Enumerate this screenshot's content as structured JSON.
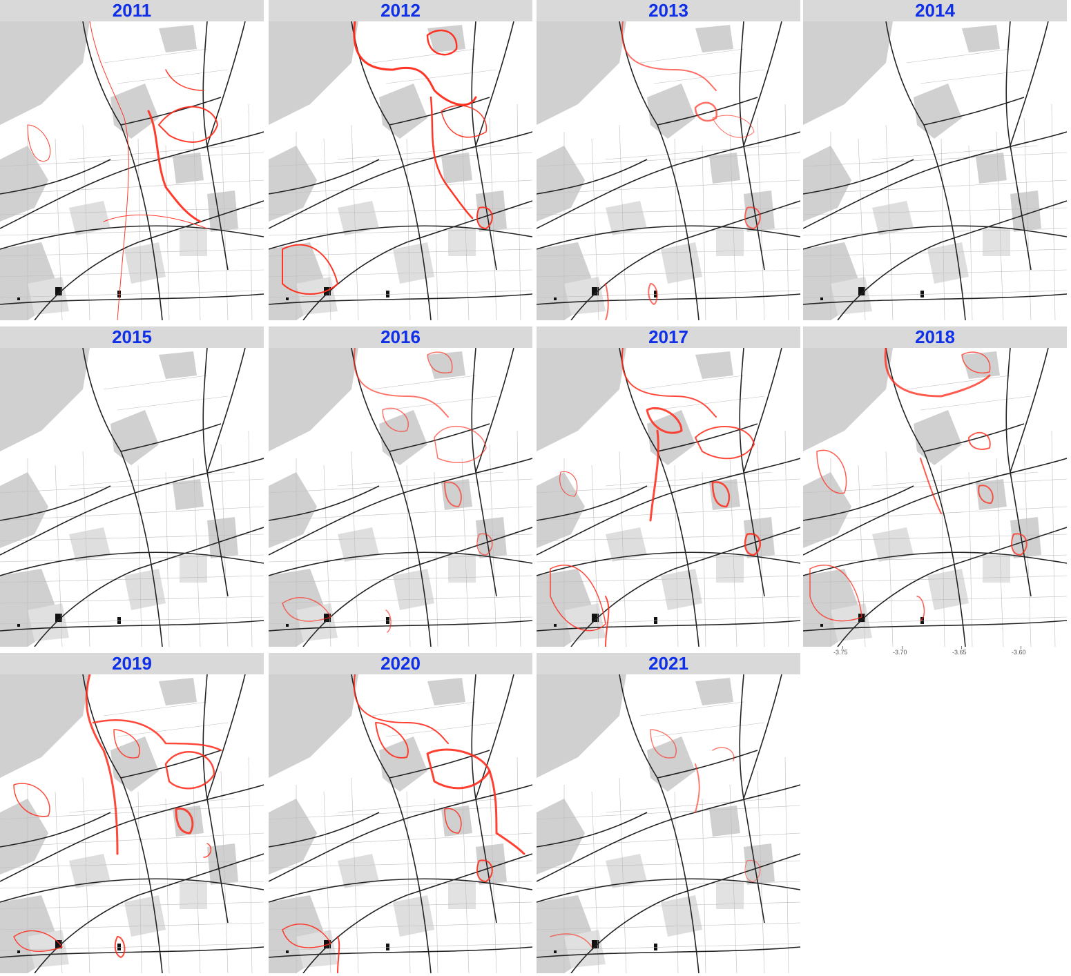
{
  "panels": [
    {
      "year": "2011",
      "intensity": 0.95
    },
    {
      "year": "2012",
      "intensity": 1.0
    },
    {
      "year": "2013",
      "intensity": 0.55
    },
    {
      "year": "2014",
      "intensity": 0.0
    },
    {
      "year": "2015",
      "intensity": 0.0
    },
    {
      "year": "2016",
      "intensity": 0.5
    },
    {
      "year": "2017",
      "intensity": 0.85
    },
    {
      "year": "2018",
      "intensity": 0.7
    },
    {
      "year": "2019",
      "intensity": 0.85
    },
    {
      "year": "2020",
      "intensity": 0.9
    },
    {
      "year": "2021",
      "intensity": 0.45
    }
  ],
  "x_axis": {
    "ticks": [
      "-3.75",
      "-3.70",
      "-3.65",
      "-3.60"
    ]
  },
  "colors": {
    "title_text": "#1030e8",
    "strip_bg": "#d9d9d9",
    "track": "#ff2a1a",
    "landuse": "#cfcfcf",
    "road": "#222222"
  }
}
